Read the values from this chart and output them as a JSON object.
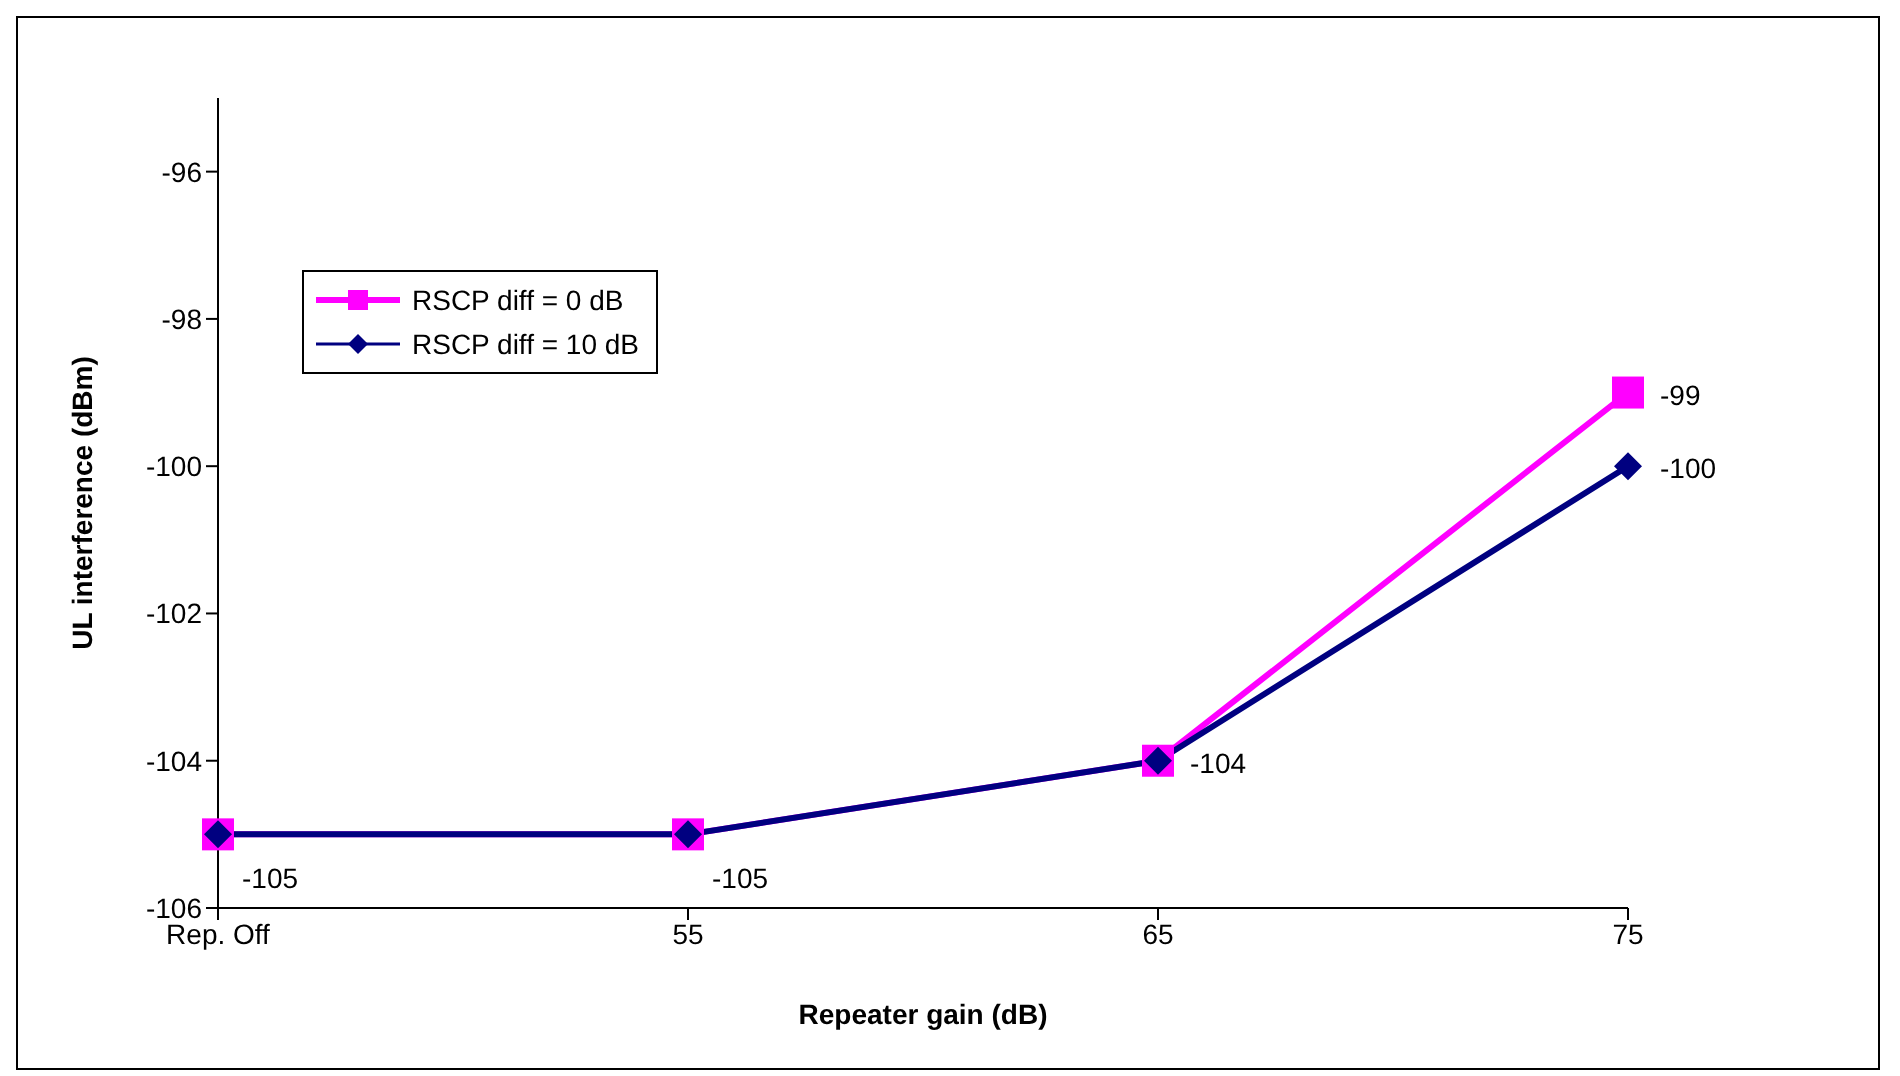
{
  "chart_data": {
    "type": "line",
    "xlabel": "Repeater gain (dB)",
    "ylabel": "UL interference (dBm)",
    "categories": [
      "Rep. Off",
      "55",
      "65",
      "75"
    ],
    "series": [
      {
        "name": "RSCP diff = 0 dB",
        "color": "#ff00ff",
        "marker": "square",
        "values": [
          -105,
          -105,
          -104,
          -99
        ],
        "value_labels": [
          null,
          null,
          null,
          "-99"
        ]
      },
      {
        "name": "RSCP diff = 10 dB",
        "color": "#000080",
        "marker": "diamond",
        "values": [
          -105,
          -105,
          -104,
          -100
        ],
        "value_labels": [
          "-105",
          "-105",
          "-104",
          "-100"
        ]
      }
    ],
    "ylim": [
      -106,
      -95
    ],
    "yticks": [
      -106,
      -104,
      -102,
      -100,
      -98,
      -96
    ],
    "grid": false,
    "legend": "top left"
  }
}
